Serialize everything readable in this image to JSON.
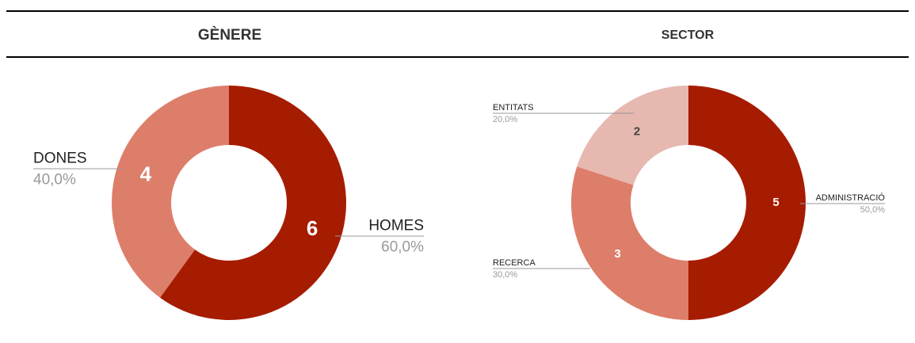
{
  "chart_data": [
    {
      "type": "donut",
      "title": "GÈNERE",
      "categories": [
        "HOMES",
        "DONES"
      ],
      "values": [
        6,
        4
      ],
      "percent_labels": [
        "60,0%",
        "40,0%"
      ],
      "colors": [
        "#a61c00",
        "#dd7e6b"
      ]
    },
    {
      "type": "donut",
      "title": "SECTOR",
      "categories": [
        "ADMINISTRACIÓ",
        "RECERCA",
        "ENTITATS"
      ],
      "values": [
        5,
        3,
        2
      ],
      "percent_labels": [
        "50,0%",
        "30,0%",
        "20,0%"
      ],
      "colors": [
        "#a61c00",
        "#dd7e6b",
        "#e6b8af"
      ]
    }
  ]
}
